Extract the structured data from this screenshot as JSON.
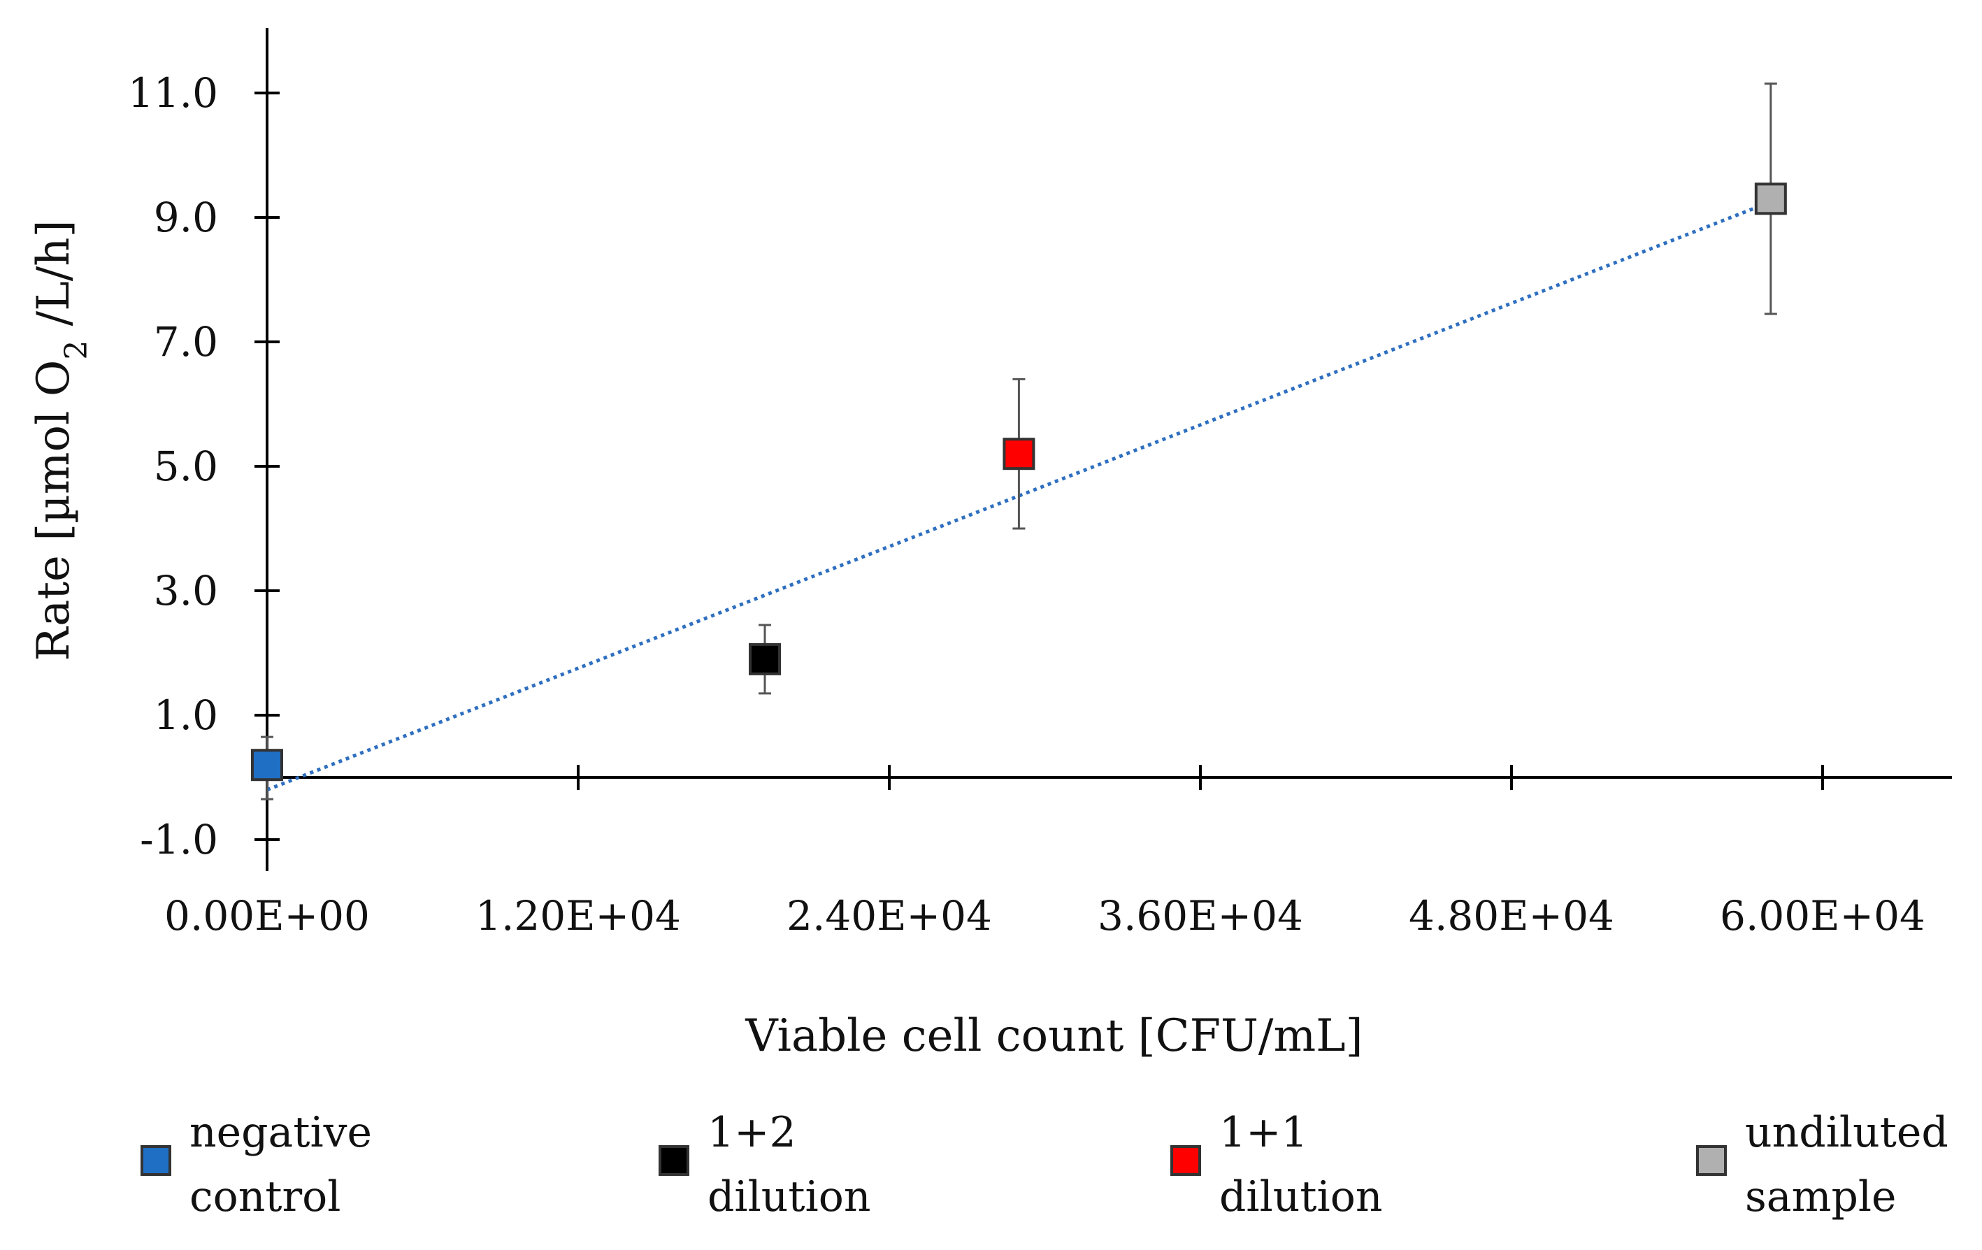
{
  "chart_data": {
    "type": "scatter",
    "title": "",
    "xlabel": "Viable cell count [CFU/mL]",
    "ylabel_parts": {
      "pre": "Rate [µmol O",
      "sub": "2",
      "post": " /L/h]"
    },
    "xlim": [
      0,
      65000
    ],
    "ylim": [
      -2.0,
      12.0
    ],
    "x_ticks": [
      0,
      12000,
      24000,
      36000,
      48000,
      60000
    ],
    "x_tick_labels": [
      "0.00E+00",
      "1.20E+04",
      "2.40E+04",
      "3.60E+04",
      "4.80E+04",
      "6.00E+04"
    ],
    "y_ticks": [
      -1,
      1,
      3,
      5,
      7,
      9,
      11
    ],
    "y_tick_labels": [
      "-1.0",
      "1.0",
      "3.0",
      "5.0",
      "7.0",
      "9.0",
      "11.0"
    ],
    "grid": false,
    "legend_position": "bottom",
    "series": [
      {
        "name": "negative control",
        "legend_lines": [
          "negative",
          "control"
        ],
        "color": "#1f6fc4",
        "x": 0,
        "y": 0.2,
        "err_low": 0.55,
        "err_high": 0.45
      },
      {
        "name": "1+2 dilution",
        "legend_lines": [
          "1+2",
          "dilution"
        ],
        "color": "#000000",
        "x": 19200,
        "y": 1.9,
        "err_low": 0.55,
        "err_high": 0.55
      },
      {
        "name": "1+1 dilution",
        "legend_lines": [
          "1+1",
          "dilution"
        ],
        "color": "#ff0000",
        "x": 29000,
        "y": 5.2,
        "err_low": 1.2,
        "err_high": 1.2
      },
      {
        "name": "undiluted sample",
        "legend_lines": [
          "undiluted",
          "sample"
        ],
        "color": "#b0b0b0",
        "x": 58000,
        "y": 9.3,
        "err_low": 1.85,
        "err_high": 1.85
      }
    ],
    "trendline": {
      "type": "linear",
      "color": "#2e6fc0",
      "style": "dotted",
      "x0": 0,
      "y0": -0.2,
      "x1": 58000,
      "y1": 9.25
    }
  }
}
